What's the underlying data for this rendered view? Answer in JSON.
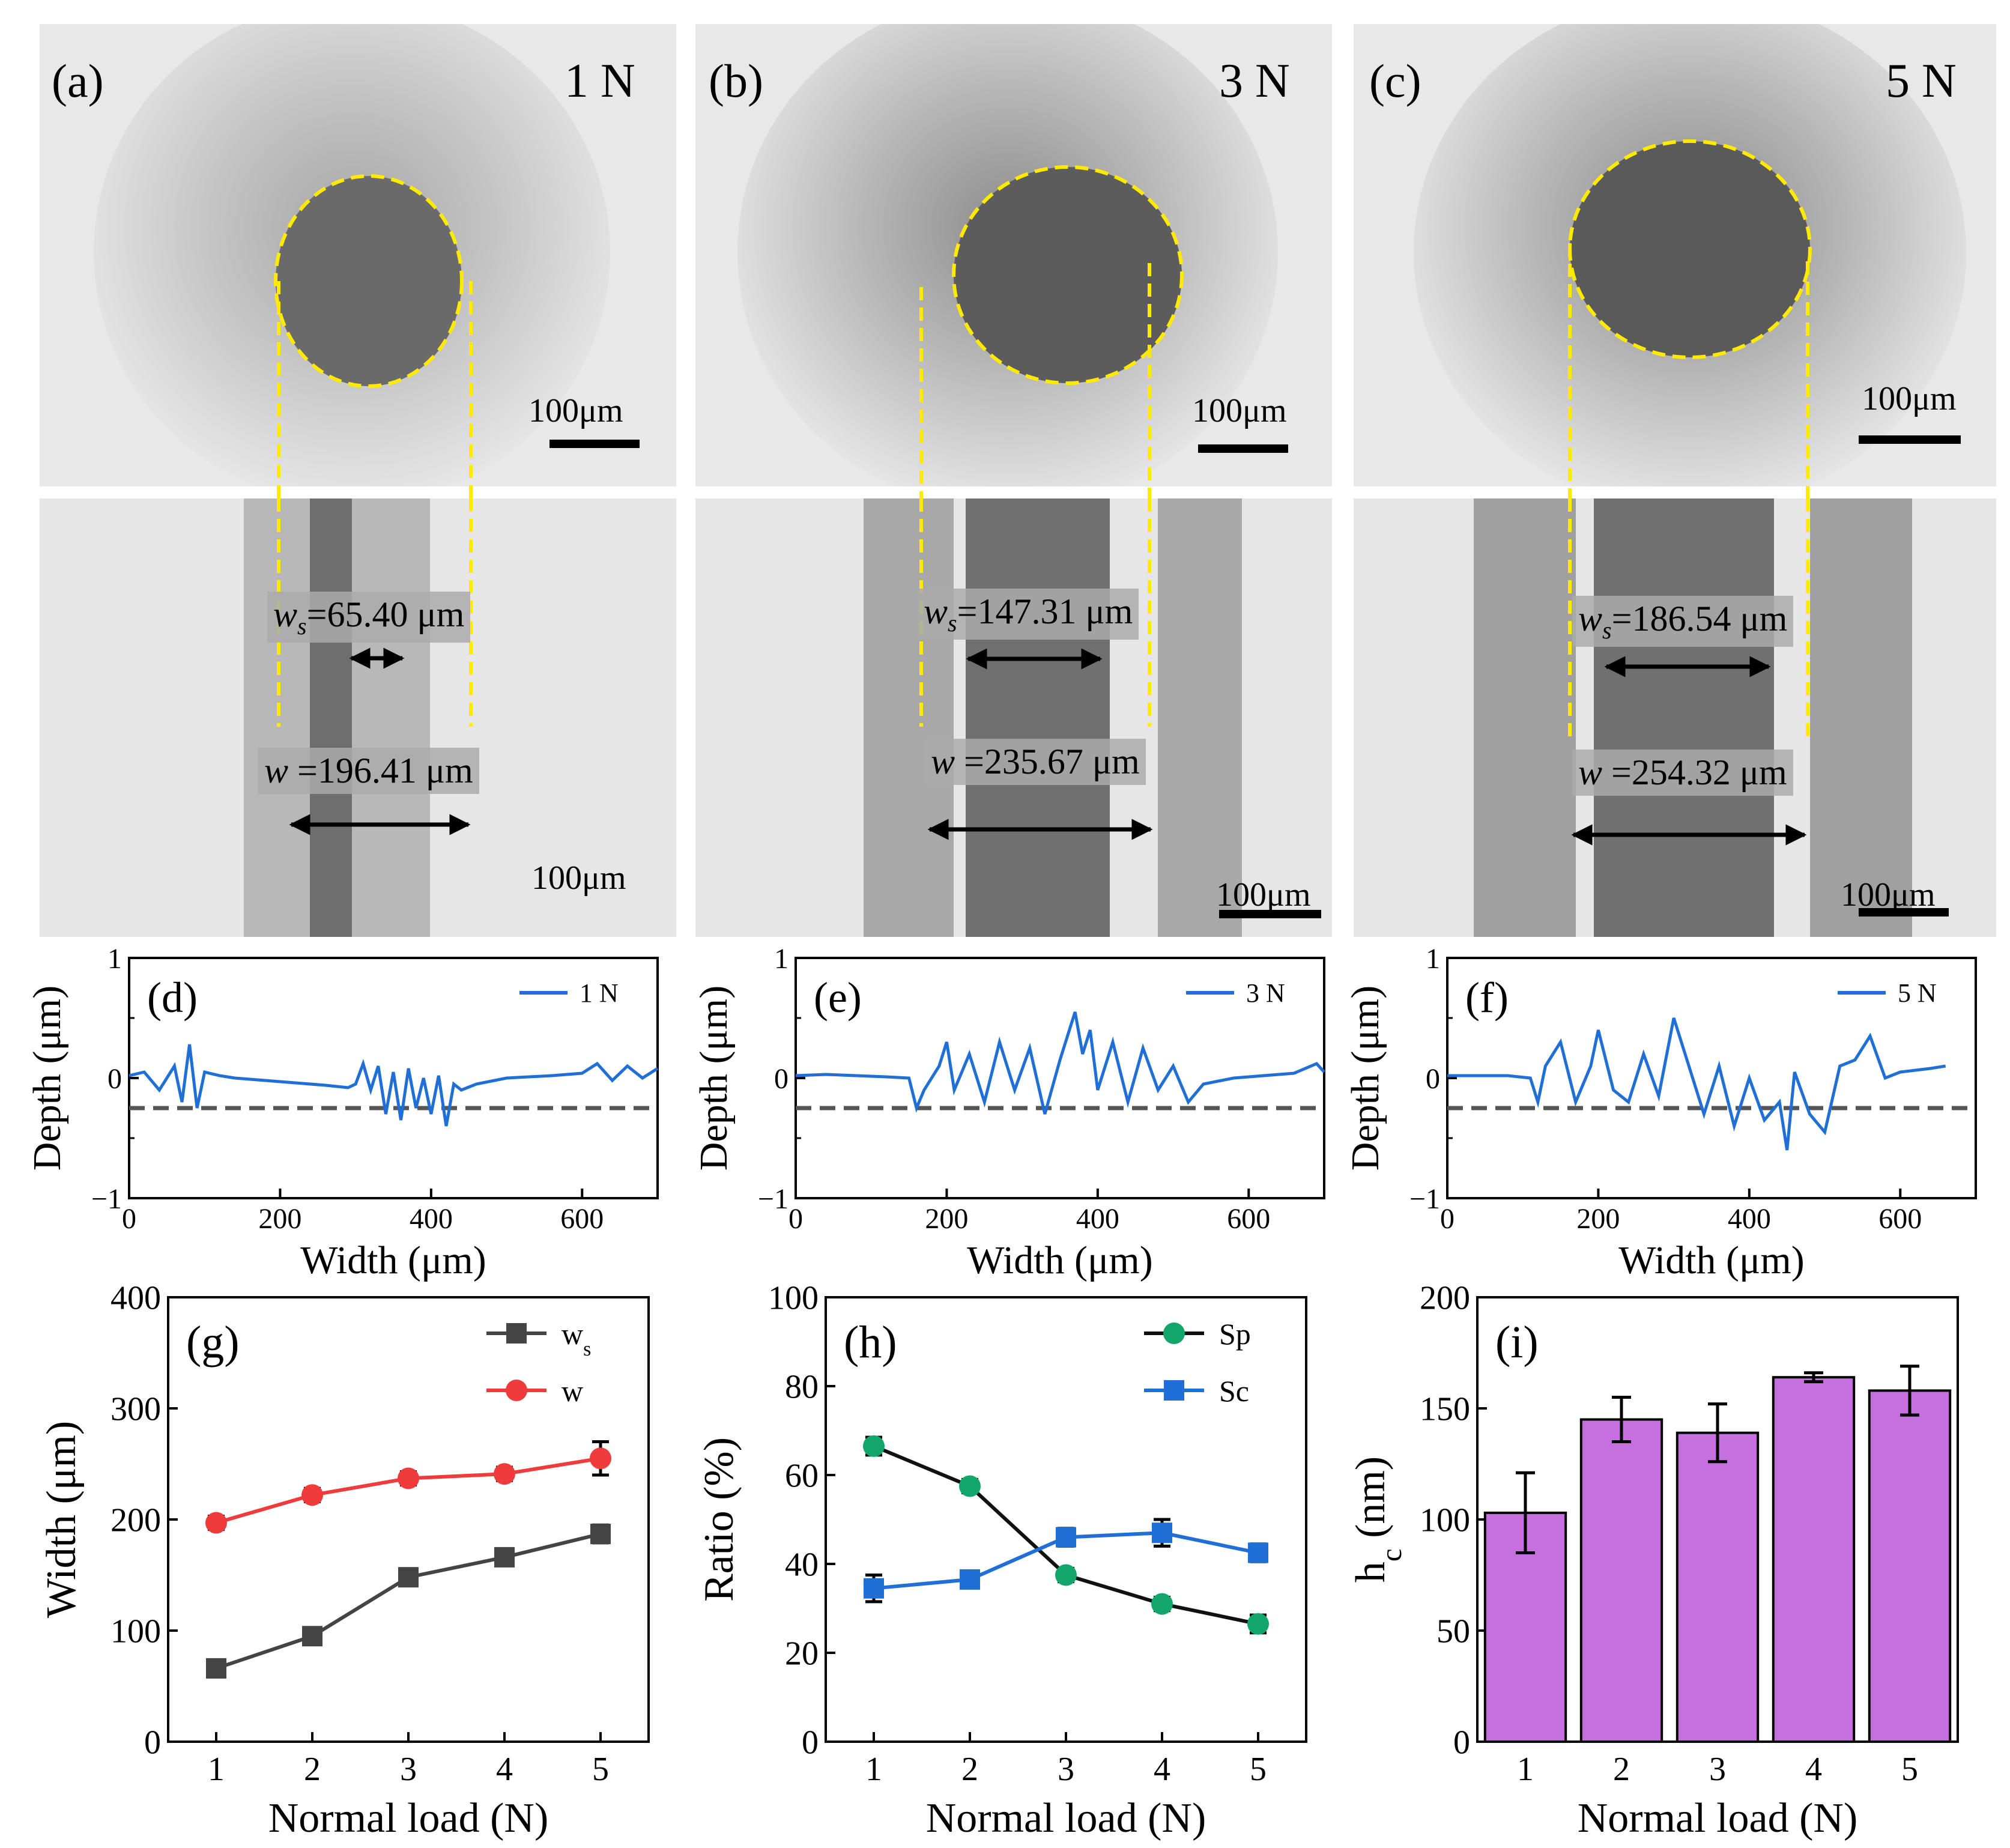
{
  "micrographs": [
    {
      "panel": "(a)",
      "load": "1 N",
      "scale_top": "100μm",
      "scale_bottom": "100μm",
      "ws_label": "=65.40 μm",
      "w_label": "=196.41 μm"
    },
    {
      "panel": "(b)",
      "load": "3 N",
      "scale_top": "100μm",
      "scale_bottom": "100μm",
      "ws_label": "=147.31 μm",
      "w_label": "=235.67 μm"
    },
    {
      "panel": "(c)",
      "load": "5 N",
      "scale_top": "100μm",
      "scale_bottom": "100μm",
      "ws_label": "=186.54 μm",
      "w_label": "=254.32 μm"
    }
  ],
  "ws_symbol": "w",
  "ws_sub": "s",
  "w_symbol": "w",
  "chart_data": [
    {
      "id": "d",
      "type": "line",
      "panel": "(d)",
      "xlabel": "Width (μm)",
      "ylabel": "Depth (μm)",
      "xlim": [
        0,
        700
      ],
      "ylim": [
        -1,
        1
      ],
      "xticks": [
        "0",
        "200",
        "400",
        "600"
      ],
      "yticks": [
        "-1",
        "0",
        "1"
      ],
      "legend": "1 N",
      "reference_depth": -0.25,
      "color": "#1f6fd6",
      "series": [
        {
          "name": "1 N",
          "x": [
            0,
            20,
            40,
            60,
            70,
            80,
            90,
            100,
            120,
            140,
            180,
            220,
            260,
            290,
            300,
            310,
            320,
            330,
            340,
            350,
            360,
            370,
            380,
            390,
            400,
            410,
            420,
            430,
            440,
            460,
            500,
            560,
            600,
            620,
            640,
            660,
            680,
            700
          ],
          "y": [
            0.02,
            0.05,
            -0.1,
            0.1,
            -0.2,
            0.28,
            -0.25,
            0.05,
            0.02,
            0.0,
            -0.02,
            -0.04,
            -0.06,
            -0.08,
            -0.05,
            0.12,
            -0.1,
            0.1,
            -0.3,
            0.05,
            -0.35,
            0.08,
            -0.25,
            0.0,
            -0.3,
            0.02,
            -0.4,
            -0.05,
            -0.1,
            -0.05,
            0.0,
            0.02,
            0.04,
            0.12,
            -0.02,
            0.1,
            0.0,
            0.08
          ]
        }
      ]
    },
    {
      "id": "e",
      "type": "line",
      "panel": "(e)",
      "xlabel": "Width (μm)",
      "ylabel": "Depth (μm)",
      "xlim": [
        0,
        700
      ],
      "ylim": [
        -1,
        1
      ],
      "xticks": [
        "0",
        "200",
        "400",
        "600"
      ],
      "yticks": [
        "-1",
        "0",
        "1"
      ],
      "legend": "3 N",
      "reference_depth": -0.25,
      "color": "#1f6fd6",
      "series": [
        {
          "name": "3 N",
          "x": [
            0,
            40,
            80,
            120,
            150,
            160,
            170,
            190,
            200,
            210,
            230,
            250,
            270,
            290,
            310,
            330,
            350,
            370,
            380,
            390,
            400,
            420,
            440,
            460,
            480,
            500,
            520,
            540,
            580,
            620,
            660,
            690,
            700
          ],
          "y": [
            0.02,
            0.03,
            0.02,
            0.01,
            0.0,
            -0.25,
            -0.1,
            0.1,
            0.3,
            -0.1,
            0.2,
            -0.2,
            0.3,
            -0.1,
            0.25,
            -0.3,
            0.15,
            0.55,
            0.2,
            0.4,
            -0.1,
            0.3,
            -0.2,
            0.25,
            -0.1,
            0.1,
            -0.2,
            -0.05,
            0.0,
            0.02,
            0.04,
            0.12,
            0.05
          ]
        }
      ]
    },
    {
      "id": "f",
      "type": "line",
      "panel": "(f)",
      "xlabel": "Width (μm)",
      "ylabel": "Depth (μm)",
      "xlim": [
        0,
        700
      ],
      "ylim": [
        -1,
        1
      ],
      "xticks": [
        "0",
        "200",
        "400",
        "600"
      ],
      "yticks": [
        "-1",
        "0",
        "1"
      ],
      "legend": "5 N",
      "reference_depth": -0.25,
      "color": "#1f6fd6",
      "series": [
        {
          "name": "5 N",
          "x": [
            0,
            40,
            80,
            110,
            120,
            130,
            150,
            170,
            190,
            200,
            220,
            240,
            260,
            280,
            300,
            320,
            340,
            360,
            380,
            400,
            420,
            440,
            450,
            460,
            480,
            500,
            520,
            540,
            560,
            580,
            600,
            640,
            660
          ],
          "y": [
            0.02,
            0.02,
            0.02,
            0.0,
            -0.2,
            0.1,
            0.3,
            -0.2,
            0.1,
            0.4,
            -0.1,
            -0.2,
            0.2,
            -0.15,
            0.5,
            0.1,
            -0.3,
            0.1,
            -0.4,
            0.0,
            -0.35,
            -0.2,
            -0.6,
            0.05,
            -0.3,
            -0.45,
            0.1,
            0.15,
            0.35,
            0.0,
            0.05,
            0.08,
            0.1
          ]
        }
      ]
    },
    {
      "id": "g",
      "type": "line",
      "panel": "(g)",
      "xlabel": "Normal load (N)",
      "ylabel": "Width (μm)",
      "xlim": [
        0.5,
        5.5
      ],
      "ylim": [
        0,
        400
      ],
      "xticks": [
        "1",
        "2",
        "3",
        "4",
        "5"
      ],
      "yticks": [
        "0",
        "100",
        "200",
        "300",
        "400"
      ],
      "categories": [
        1,
        2,
        3,
        4,
        5
      ],
      "series": [
        {
          "name": "ws",
          "legend_main": "w",
          "legend_sub": "s",
          "marker": "square",
          "color": "#444444",
          "values": [
            66,
            95,
            148,
            166,
            187
          ],
          "errors": [
            6,
            6,
            6,
            6,
            8
          ]
        },
        {
          "name": "w",
          "legend_main": "w",
          "legend_sub": "",
          "marker": "circle",
          "color": "#ef3b3b",
          "values": [
            197,
            222,
            237,
            241,
            255
          ],
          "errors": [
            6,
            6,
            6,
            6,
            15
          ]
        }
      ]
    },
    {
      "id": "h",
      "type": "line",
      "panel": "(h)",
      "xlabel": "Normal load (N)",
      "ylabel": "Ratio (%)",
      "xlim": [
        0.5,
        5.5
      ],
      "ylim": [
        0,
        100
      ],
      "xticks": [
        "1",
        "2",
        "3",
        "4",
        "5"
      ],
      "yticks": [
        "0",
        "20",
        "40",
        "60",
        "80",
        "100"
      ],
      "categories": [
        1,
        2,
        3,
        4,
        5
      ],
      "series": [
        {
          "name": "Sp",
          "legend_main": "Sp",
          "legend_sub": "",
          "marker": "circle",
          "color": "#13a66a",
          "line_color": "#111111",
          "values": [
            66.5,
            57.5,
            37.5,
            31,
            26.5
          ],
          "errors": [
            2,
            1.5,
            1.5,
            1.5,
            2
          ]
        },
        {
          "name": "Sc",
          "legend_main": "Sc",
          "legend_sub": "",
          "marker": "square",
          "color": "#1f6fd6",
          "line_color": "#1f6fd6",
          "values": [
            34.5,
            36.5,
            46,
            47,
            42.5
          ],
          "errors": [
            3,
            1.5,
            2,
            3,
            2
          ]
        }
      ]
    },
    {
      "id": "i",
      "type": "bar",
      "panel": "(i)",
      "xlabel": "Normal load (N)",
      "ylabel": "h",
      "ylabel_sub": "c",
      "ylabel_unit": " (nm)",
      "xlim": [
        0.5,
        5.5
      ],
      "ylim": [
        0,
        200
      ],
      "xticks": [
        "1",
        "2",
        "3",
        "4",
        "5"
      ],
      "yticks": [
        "0",
        "50",
        "100",
        "150",
        "200"
      ],
      "categories": [
        1,
        2,
        3,
        4,
        5
      ],
      "color": "#c670e0",
      "values": [
        103,
        145,
        139,
        164,
        158
      ],
      "errors": [
        18,
        10,
        13,
        2,
        11
      ]
    }
  ]
}
